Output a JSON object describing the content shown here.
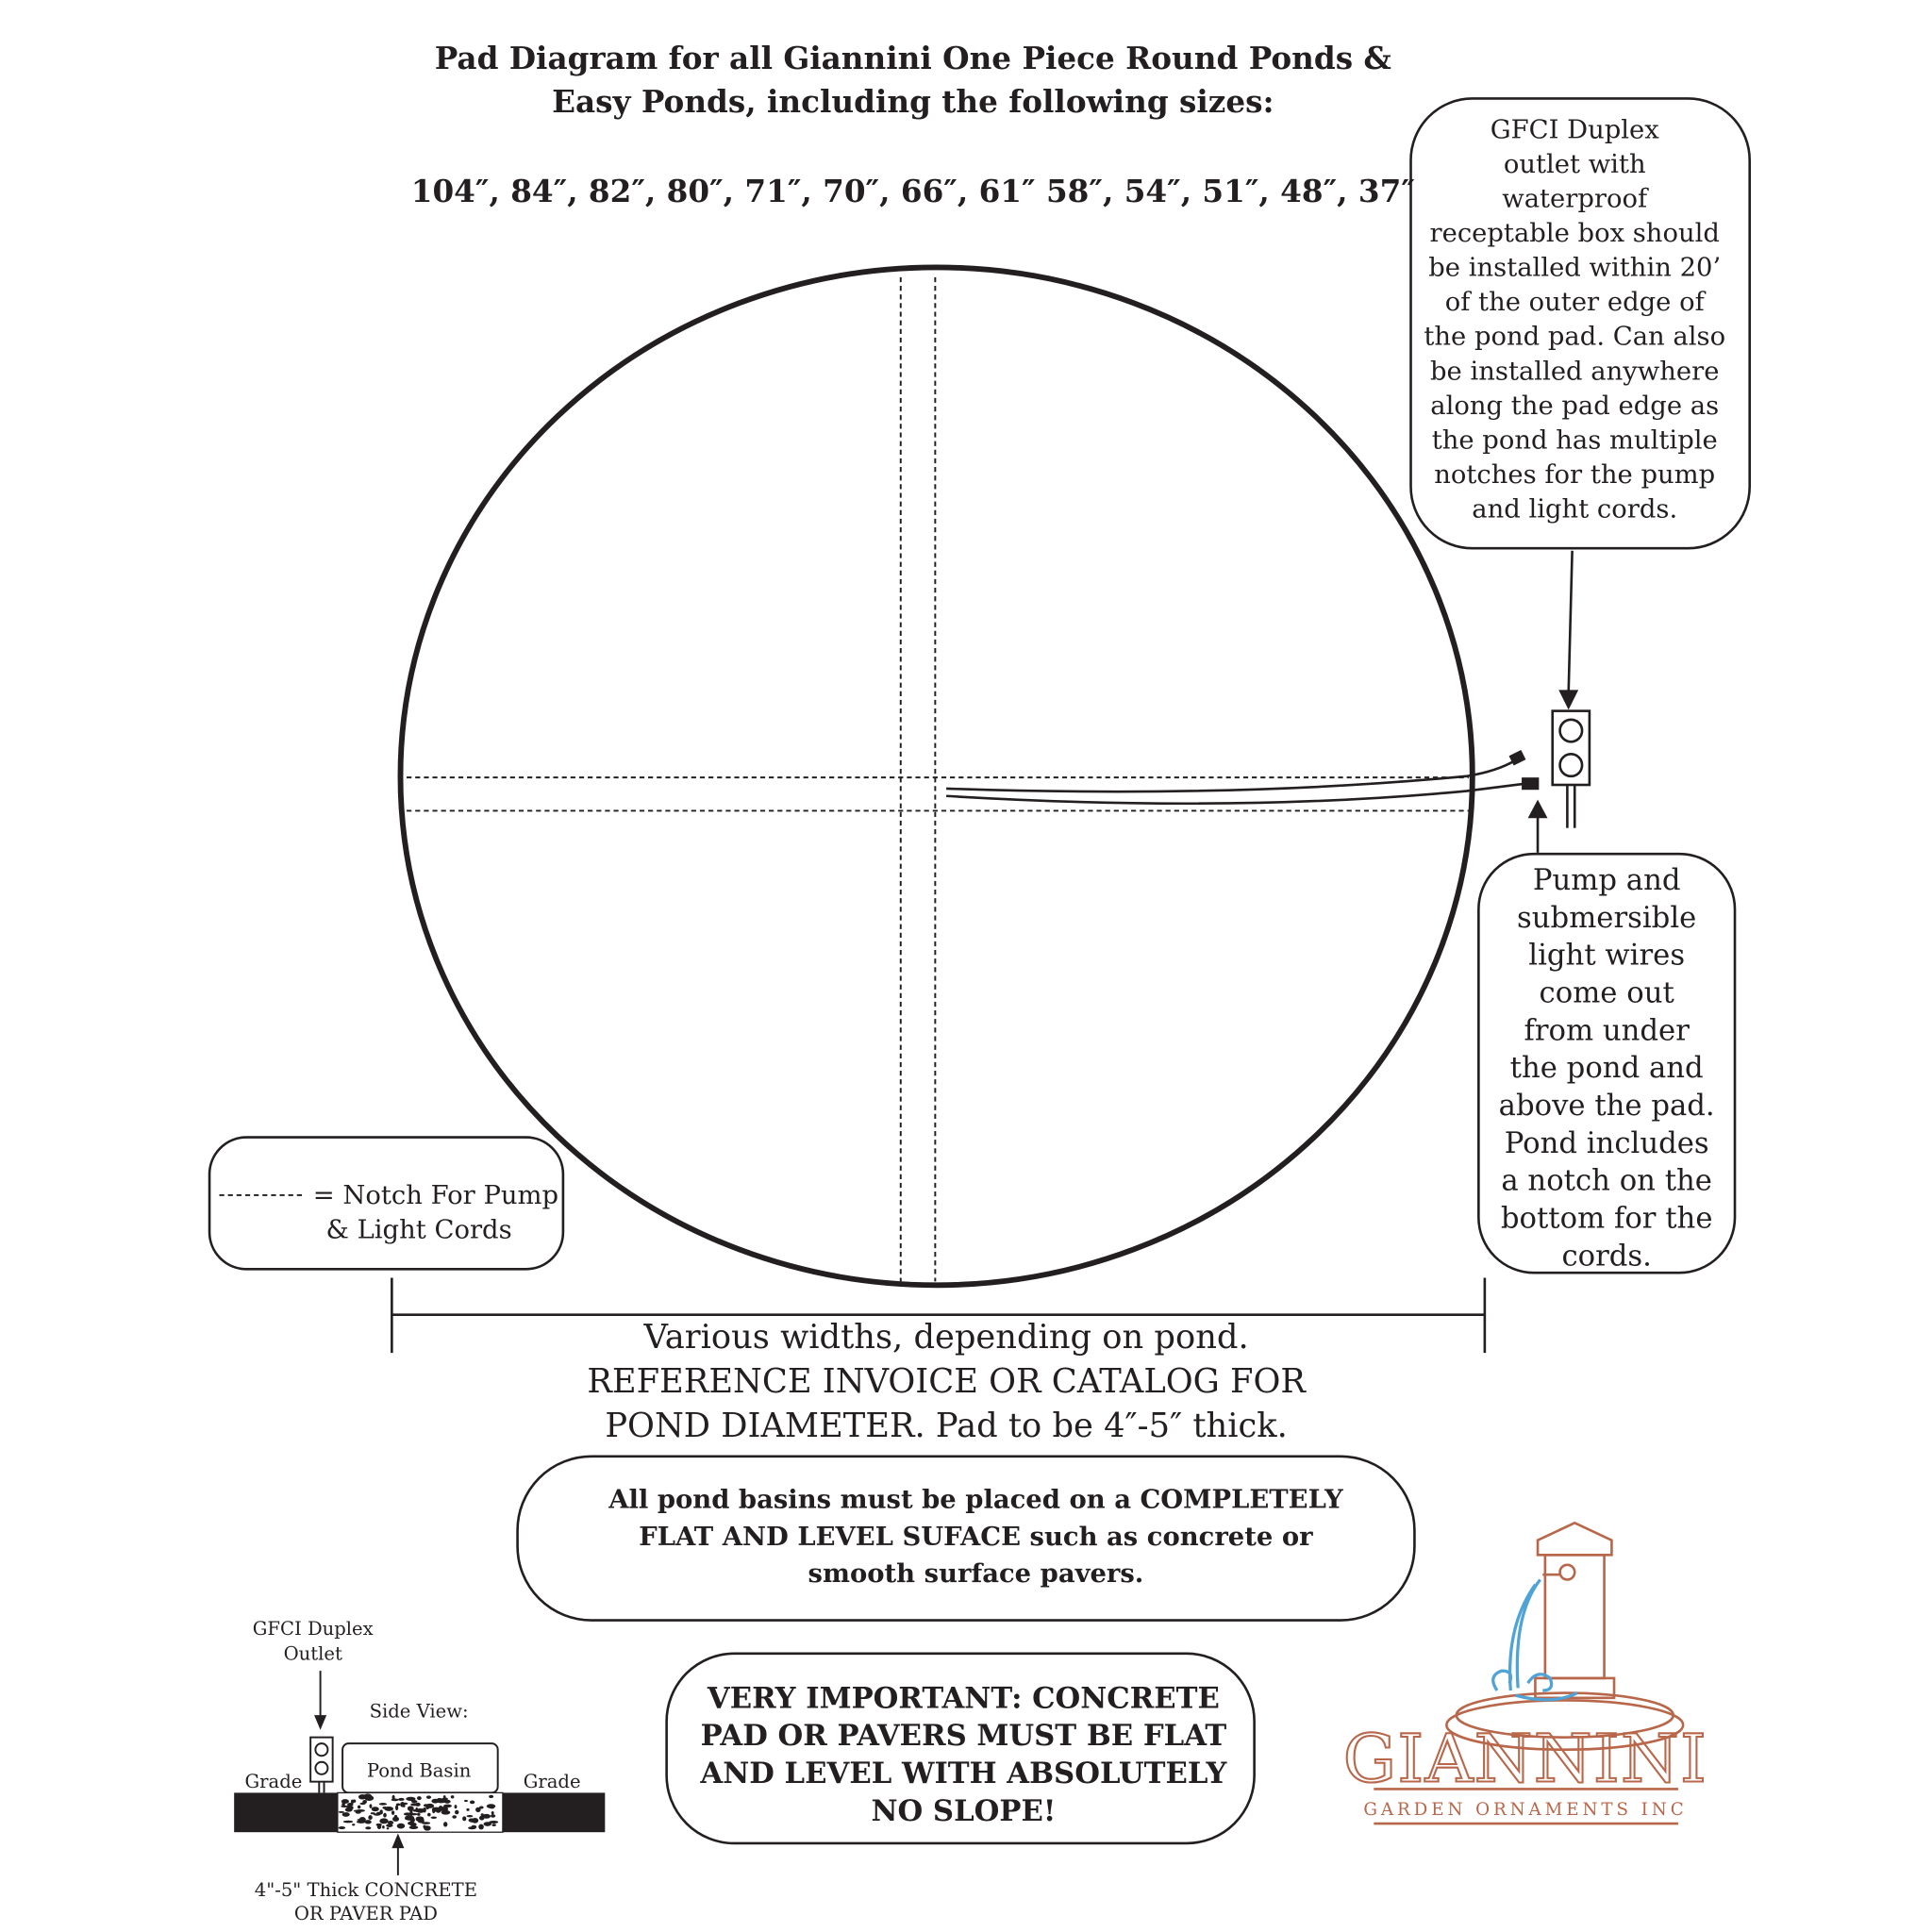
{
  "title": {
    "line1": "Pad Diagram for all Giannini One Piece Round Ponds &",
    "line2": "Easy Ponds, including the following sizes:",
    "sizes": "104″, 84″, 82″, 80″, 71″, 70″, 66″, 61″ 58″, 54″, 51″, 48″, 37″"
  },
  "gfci_callout": {
    "lines": [
      "GFCI Duplex",
      "outlet with",
      "waterproof",
      "receptable box should",
      "be installed within 20’",
      "of the outer edge of",
      "the pond pad. Can also",
      "be installed anywhere",
      "along the pad edge as",
      "the pond has multiple",
      "notches for the pump",
      "and light cords."
    ]
  },
  "wires_callout": {
    "lines": [
      "Pump and",
      "submersible",
      "light wires",
      "come out",
      "from under",
      "the pond and",
      "above the pad.",
      "Pond includes",
      "a notch on the",
      "bottom for the",
      "cords."
    ]
  },
  "legend": {
    "line1": "= Notch For Pump",
    "line2": "& Light Cords"
  },
  "dimension": {
    "lines": [
      "Various widths, depending on pond.",
      "REFERENCE INVOICE OR CATALOG FOR",
      "POND DIAMETER. Pad to be 4″-5″ thick."
    ]
  },
  "flat_notice": {
    "lines": [
      "All pond basins must be placed on a COMPLETELY",
      "FLAT AND LEVEL SUFACE such as concrete or",
      "smooth surface pavers."
    ]
  },
  "important_notice": {
    "lines": [
      "VERY IMPORTANT: CONCRETE",
      "PAD OR PAVERS MUST BE FLAT",
      "AND LEVEL WITH ABSOLUTELY",
      "NO SLOPE!"
    ]
  },
  "side_view": {
    "outlet_label1": "GFCI Duplex",
    "outlet_label2": "Outlet",
    "title": "Side View:",
    "basin": "Pond Basin",
    "grade_left": "Grade",
    "grade_right": "Grade",
    "pad_label1": "4\"-5\" Thick CONCRETE",
    "pad_label2": "OR PAVER PAD"
  },
  "logo": {
    "name": "GIANNINI",
    "tagline": "GARDEN ORNAMENTS INC",
    "brand_color": "#b8674a",
    "water_color": "#4fa3d6"
  }
}
